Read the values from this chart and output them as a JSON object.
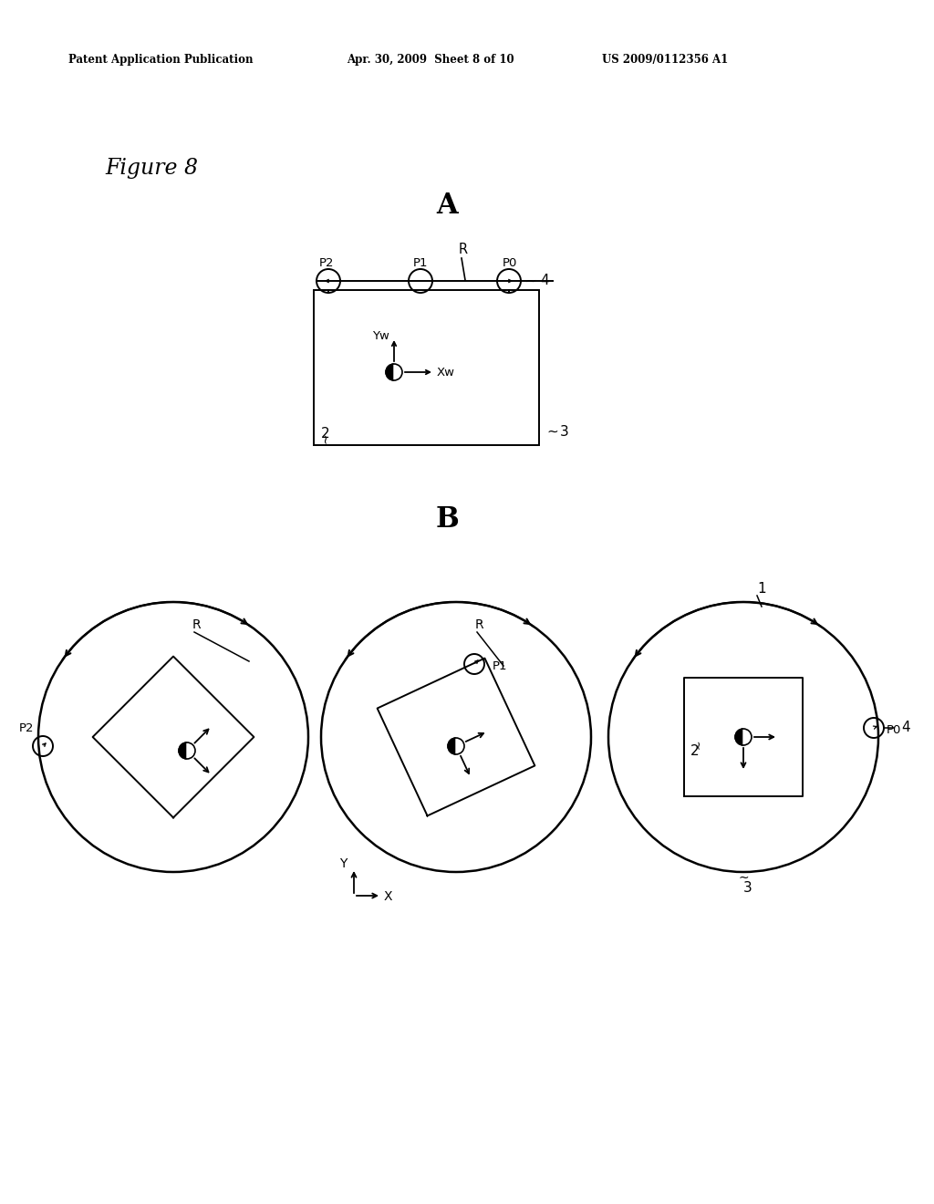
{
  "bg_color": "#ffffff",
  "header_left": "Patent Application Publication",
  "header_mid": "Apr. 30, 2009  Sheet 8 of 10",
  "header_right": "US 2009/0112356 A1",
  "figure_label": "Figure 8",
  "section_A_label": "A",
  "section_B_label": "B",
  "figW": 10.24,
  "figH": 13.2,
  "dpi": 100
}
